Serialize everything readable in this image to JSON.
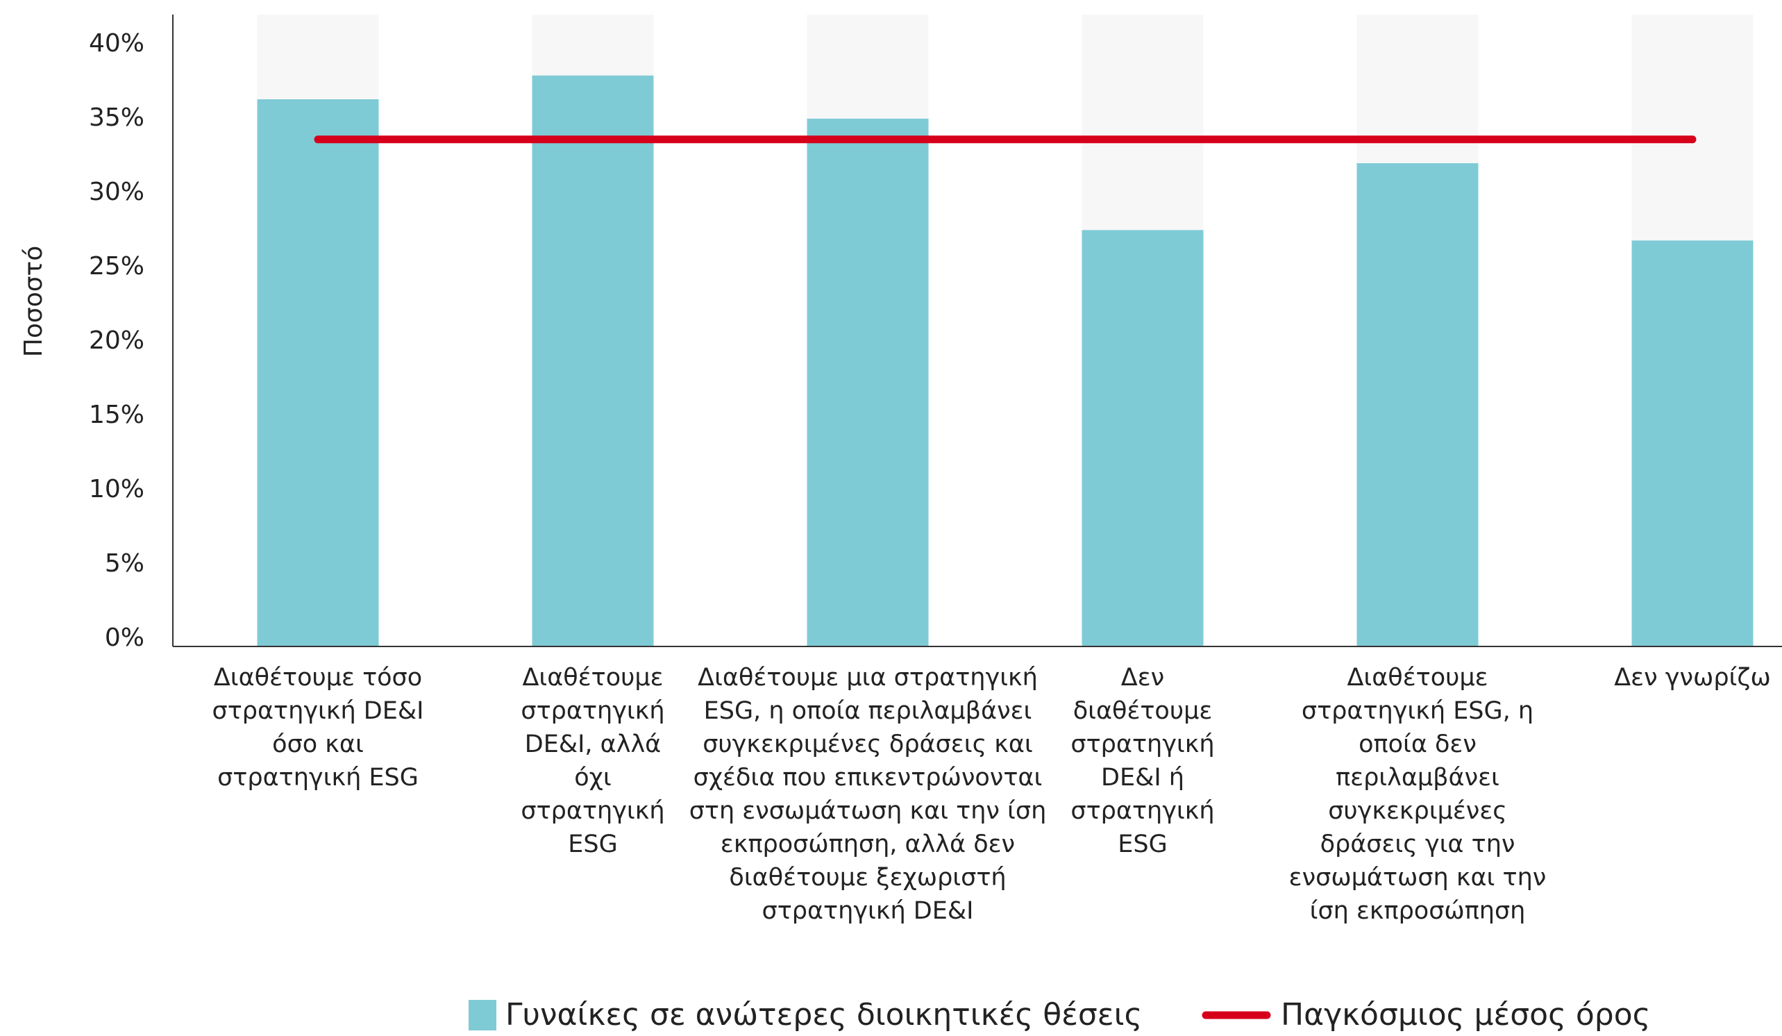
{
  "chart_data": {
    "type": "bar",
    "y_label": "Ποσοστό",
    "categories": [
      "Διαθέτουμε τόσο στρατηγική DE&I όσο και στρατηγική ESG",
      "Διαθέτουμε στρατηγική DE&I, αλλά όχι στρατηγική ESG",
      "Διαθέτουμε μια στρατηγική ESG, η οποία περιλαμβάνει συγκεκριμένες δράσεις και σχέδια που επικεντρώνονται στη ενσωμάτωση και την ίση εκπροσώπηση, αλλά δεν διαθέτουμε ξεχωριστή στρατηγική DE&I",
      "Δεν διαθέτουμε στρατηγική DE&I ή στρατηγική ESG",
      "Διαθέτουμε στρατηγική ESG, η οποία δεν περιλαμβάνει συγκεκριμένες δράσεις για την ενσωμάτωση και την ίση εκπροσώπηση",
      "Δεν γνωρίζω"
    ],
    "series": [
      {
        "name": "Γυναίκες σε ανώτερες διοικητικές θέσεις",
        "color": "#7ecbd6",
        "values": [
          36.3,
          37.9,
          35.0,
          27.5,
          32.0,
          26.8
        ]
      },
      {
        "name": "Παγκόσμιος μέσος όρος",
        "type": "line",
        "color": "#d7001b",
        "values": [
          33.6,
          33.6,
          33.6,
          33.6,
          33.6,
          33.6
        ]
      }
    ],
    "ylim": [
      0,
      42
    ],
    "yticks": [
      {
        "value": 0,
        "label": "0%"
      },
      {
        "value": 5,
        "label": "5%"
      },
      {
        "value": 10,
        "label": "10%"
      },
      {
        "value": 15,
        "label": "15%"
      },
      {
        "value": 20,
        "label": "20%"
      },
      {
        "value": 25,
        "label": "25%"
      },
      {
        "value": 30,
        "label": "30%"
      },
      {
        "value": 35,
        "label": "35%"
      },
      {
        "value": 40,
        "label": "40%"
      }
    ]
  }
}
